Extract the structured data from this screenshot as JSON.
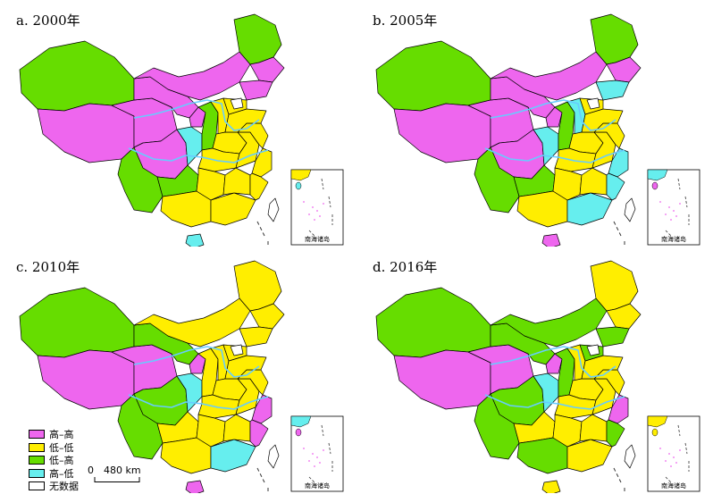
{
  "colors": {
    "hh": "#ee66ee",
    "ll": "#ffee00",
    "lh": "#66dd00",
    "hl": "#66eeee",
    "nodata": "#ffffff",
    "river": "#66ccff"
  },
  "panels": [
    {
      "label": "a. 2000年",
      "key": "p2000"
    },
    {
      "label": "b. 2005年",
      "key": "p2005"
    },
    {
      "label": "c. 2010年",
      "key": "p2010"
    },
    {
      "label": "d. 2016年",
      "key": "p2016"
    }
  ],
  "inset_label": "南海诸岛",
  "legend": [
    {
      "label": "高–高",
      "color_key": "hh"
    },
    {
      "label": "低–低",
      "color_key": "ll"
    },
    {
      "label": "低–高",
      "color_key": "lh"
    },
    {
      "label": "高–低",
      "color_key": "hl"
    },
    {
      "label": "无数据",
      "color_key": "nodata"
    }
  ],
  "scale": {
    "zero": "0",
    "distance": "480 km"
  },
  "region_names": [
    "xinjiang",
    "tibet",
    "qinghai",
    "gansu",
    "innermongolia",
    "heilongjiang",
    "jilin",
    "liaoning",
    "ningxia",
    "sichuan",
    "yunnan",
    "chongqing",
    "guizhou",
    "guangxi",
    "guangdong",
    "hainan",
    "shaanxi",
    "shanxi",
    "henan",
    "hubei",
    "hunan",
    "jiangxi",
    "anhui",
    "jiangsu",
    "zhejiang",
    "fujian",
    "shandong",
    "hebei",
    "beijing",
    "taiwan"
  ],
  "classes": {
    "p2000": {
      "xinjiang": "lh",
      "tibet": "hh",
      "qinghai": "hh",
      "gansu": "hh",
      "innermongolia": "hh",
      "heilongjiang": "lh",
      "jilin": "hh",
      "liaoning": "hh",
      "ningxia": "hh",
      "sichuan": "hh",
      "yunnan": "lh",
      "chongqing": "hl",
      "guizhou": "lh",
      "guangxi": "ll",
      "guangdong": "ll",
      "hainan": "hl",
      "shaanxi": "lh",
      "shanxi": "ll",
      "henan": "ll",
      "hubei": "ll",
      "hunan": "ll",
      "jiangxi": "ll",
      "anhui": "ll",
      "jiangsu": "ll",
      "zhejiang": "ll",
      "fujian": "ll",
      "shandong": "ll",
      "hebei": "ll",
      "beijing": "nodata",
      "taiwan": "nodata"
    },
    "p2005": {
      "xinjiang": "lh",
      "tibet": "hh",
      "qinghai": "hh",
      "gansu": "hh",
      "innermongolia": "hh",
      "heilongjiang": "lh",
      "jilin": "hh",
      "liaoning": "hl",
      "ningxia": "hh",
      "sichuan": "hh",
      "yunnan": "lh",
      "chongqing": "hl",
      "guizhou": "lh",
      "guangxi": "ll",
      "guangdong": "hl",
      "hainan": "hh",
      "shaanxi": "lh",
      "shanxi": "hl",
      "henan": "ll",
      "hubei": "ll",
      "hunan": "ll",
      "jiangxi": "ll",
      "anhui": "ll",
      "jiangsu": "ll",
      "zhejiang": "hl",
      "fujian": "hl",
      "shandong": "ll",
      "hebei": "ll",
      "beijing": "nodata",
      "taiwan": "nodata"
    },
    "p2010": {
      "xinjiang": "lh",
      "tibet": "hh",
      "qinghai": "hh",
      "gansu": "lh",
      "innermongolia": "ll",
      "heilongjiang": "ll",
      "jilin": "ll",
      "liaoning": "ll",
      "ningxia": "hh",
      "sichuan": "lh",
      "yunnan": "lh",
      "chongqing": "hl",
      "guizhou": "ll",
      "guangxi": "ll",
      "guangdong": "hl",
      "hainan": "hh",
      "shaanxi": "ll",
      "shanxi": "ll",
      "henan": "ll",
      "hubei": "ll",
      "hunan": "ll",
      "jiangxi": "ll",
      "anhui": "ll",
      "jiangsu": "ll",
      "zhejiang": "hh",
      "fujian": "hh",
      "shandong": "ll",
      "hebei": "ll",
      "beijing": "nodata",
      "taiwan": "nodata"
    },
    "p2016": {
      "xinjiang": "lh",
      "tibet": "hh",
      "qinghai": "hh",
      "gansu": "lh",
      "innermongolia": "lh",
      "heilongjiang": "ll",
      "jilin": "ll",
      "liaoning": "lh",
      "ningxia": "hh",
      "sichuan": "lh",
      "yunnan": "lh",
      "chongqing": "hl",
      "guizhou": "ll",
      "guangxi": "lh",
      "guangdong": "ll",
      "hainan": "ll",
      "shaanxi": "lh",
      "shanxi": "ll",
      "henan": "ll",
      "hubei": "ll",
      "hunan": "ll",
      "jiangxi": "ll",
      "anhui": "ll",
      "jiangsu": "ll",
      "zhejiang": "hh",
      "fujian": "lh",
      "shandong": "ll",
      "hebei": "lh",
      "beijing": "nodata",
      "taiwan": "nodata"
    }
  }
}
